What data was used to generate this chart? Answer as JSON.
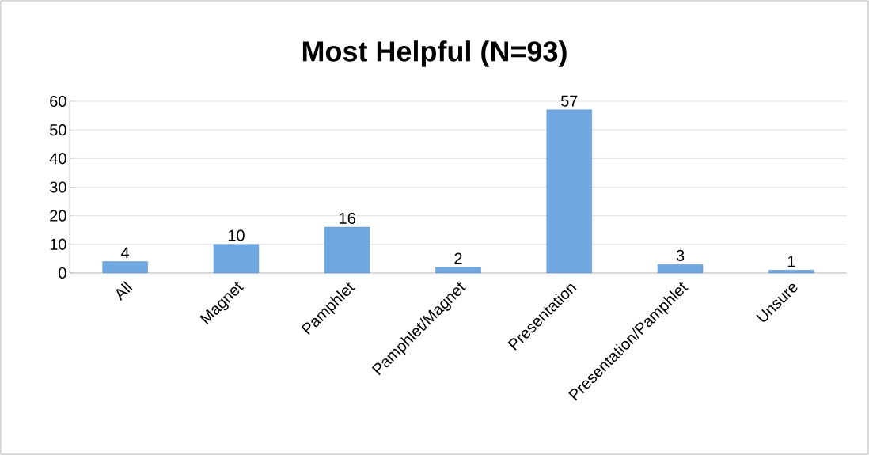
{
  "chart_data": {
    "type": "bar",
    "title": "Most Helpful (N=93)",
    "categories": [
      "All",
      "Magnet",
      "Pamphlet",
      "Pamphlet/Magnet",
      "Presentation",
      "Presentation/Pamphlet",
      "Unsure"
    ],
    "values": [
      4,
      10,
      16,
      2,
      57,
      3,
      1
    ],
    "color": "#6fa8e0",
    "ylim": [
      0,
      60
    ],
    "yticks": [
      0,
      10,
      20,
      30,
      40,
      50,
      60
    ],
    "grid": "y",
    "data_labels": true
  }
}
